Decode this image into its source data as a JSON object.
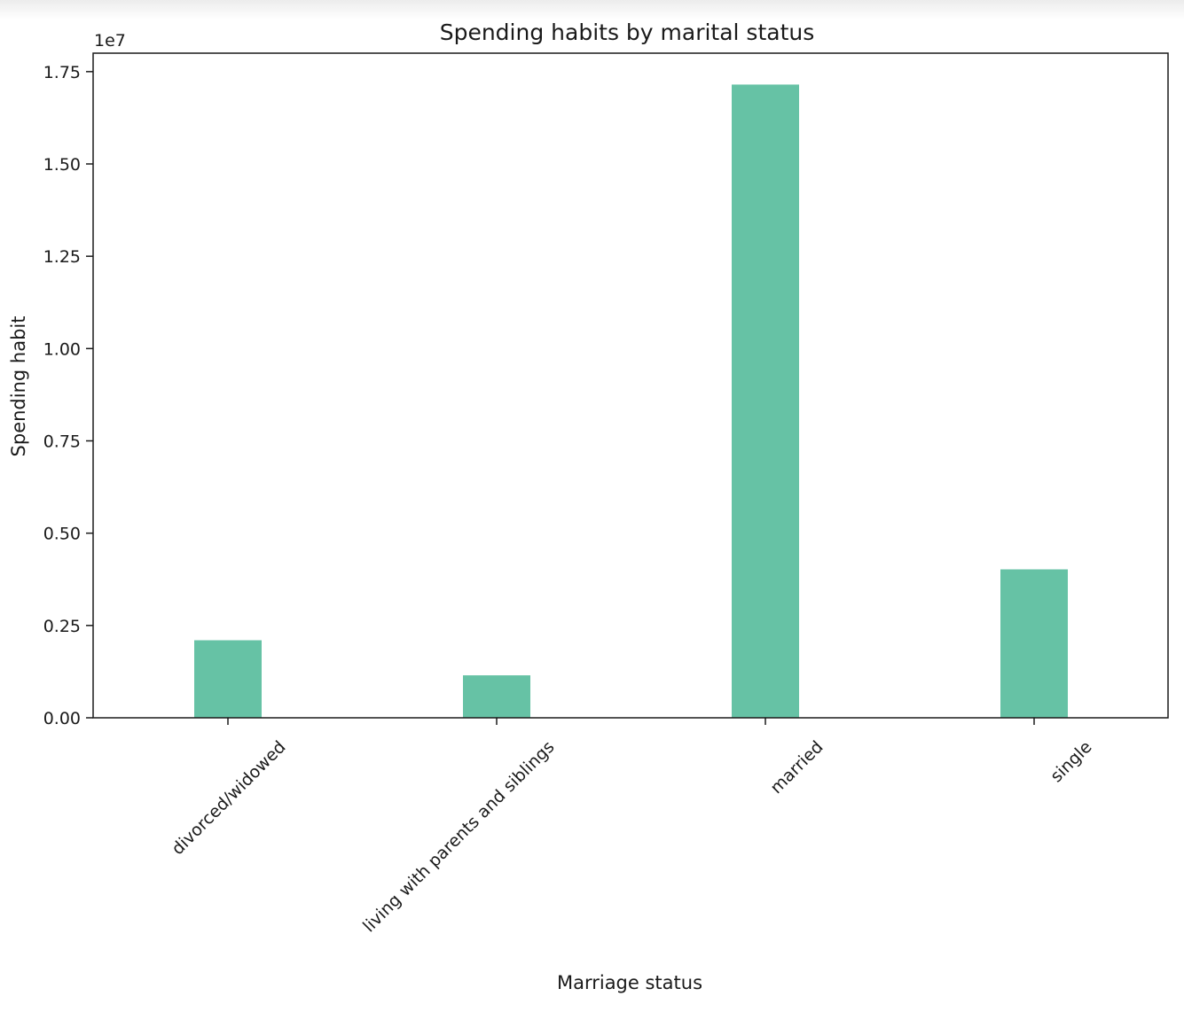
{
  "chart_data": {
    "type": "bar",
    "title": "Spending habits by marital status",
    "xlabel": "Marriage status",
    "ylabel": "Spending habit",
    "y_offset_label": "1e7",
    "categories": [
      "divorced/widowed",
      "living with parents and siblings",
      "married",
      "single"
    ],
    "values": [
      2100000,
      1150000,
      17150000,
      4020000
    ],
    "ylim": [
      0,
      18000000
    ],
    "yticks": [
      0,
      2500000,
      5000000,
      7500000,
      10000000,
      12500000,
      15000000,
      17500000
    ],
    "ytick_labels": [
      "0.00",
      "0.25",
      "0.50",
      "0.75",
      "1.00",
      "1.25",
      "1.50",
      "1.75"
    ],
    "bar_color": "#66c2a5",
    "grid": false,
    "legend": "none"
  }
}
